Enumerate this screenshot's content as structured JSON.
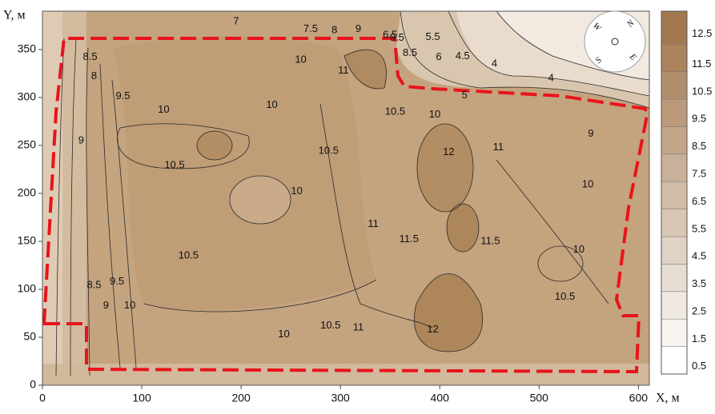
{
  "chart_data": {
    "type": "contour",
    "xlabel": "X, м",
    "ylabel": "Y, м",
    "xlim": [
      0,
      611
    ],
    "ylim": [
      0,
      390
    ],
    "xticks": [
      0,
      100,
      200,
      300,
      400,
      500,
      600
    ],
    "yticks": [
      0,
      50,
      100,
      150,
      200,
      250,
      300,
      350
    ],
    "clim": [
      0.5,
      13.7
    ],
    "cticks": [
      0.5,
      1.5,
      2.5,
      3.5,
      4.5,
      5.5,
      6.5,
      7.5,
      8.5,
      9.5,
      10.5,
      11.5,
      12.5
    ],
    "compass": [
      "N",
      "E",
      "S",
      "W"
    ],
    "contour_labels": [
      {
        "text": "7",
        "x": 195,
        "y": 379
      },
      {
        "text": "7.5",
        "x": 270,
        "y": 371
      },
      {
        "text": "8",
        "x": 294,
        "y": 370
      },
      {
        "text": "9",
        "x": 318,
        "y": 371
      },
      {
        "text": "6.5",
        "x": 350,
        "y": 365
      },
      {
        "text": "9.5",
        "x": 357,
        "y": 362
      },
      {
        "text": "8.5",
        "x": 370,
        "y": 346
      },
      {
        "text": "5.5",
        "x": 393,
        "y": 363
      },
      {
        "text": "6",
        "x": 399,
        "y": 342
      },
      {
        "text": "4.5",
        "x": 423,
        "y": 343
      },
      {
        "text": "4",
        "x": 455,
        "y": 335
      },
      {
        "text": "4",
        "x": 512,
        "y": 320
      },
      {
        "text": "5",
        "x": 425,
        "y": 302
      },
      {
        "text": "8.5",
        "x": 48,
        "y": 342
      },
      {
        "text": "8",
        "x": 52,
        "y": 322
      },
      {
        "text": "9.5",
        "x": 81,
        "y": 301
      },
      {
        "text": "10",
        "x": 122,
        "y": 287
      },
      {
        "text": "10",
        "x": 260,
        "y": 339
      },
      {
        "text": "11",
        "x": 303,
        "y": 328
      },
      {
        "text": "10",
        "x": 231,
        "y": 292
      },
      {
        "text": "10.5",
        "x": 355,
        "y": 285
      },
      {
        "text": "10",
        "x": 395,
        "y": 282
      },
      {
        "text": "9",
        "x": 39,
        "y": 255
      },
      {
        "text": "10.5",
        "x": 133,
        "y": 229
      },
      {
        "text": "10.5",
        "x": 288,
        "y": 244
      },
      {
        "text": "10",
        "x": 256,
        "y": 202
      },
      {
        "text": "12",
        "x": 409,
        "y": 243
      },
      {
        "text": "11",
        "x": 459,
        "y": 248
      },
      {
        "text": "9",
        "x": 552,
        "y": 262
      },
      {
        "text": "10",
        "x": 549,
        "y": 209
      },
      {
        "text": "11",
        "x": 333,
        "y": 168
      },
      {
        "text": "11.5",
        "x": 369,
        "y": 152
      },
      {
        "text": "11.5",
        "x": 451,
        "y": 150
      },
      {
        "text": "10.5",
        "x": 147,
        "y": 135
      },
      {
        "text": "10",
        "x": 540,
        "y": 141
      },
      {
        "text": "10.5",
        "x": 526,
        "y": 92
      },
      {
        "text": "8.5",
        "x": 52,
        "y": 104
      },
      {
        "text": "9",
        "x": 64,
        "y": 83
      },
      {
        "text": "9.5",
        "x": 75,
        "y": 108
      },
      {
        "text": "10",
        "x": 88,
        "y": 83
      },
      {
        "text": "10",
        "x": 243,
        "y": 53
      },
      {
        "text": "10.5",
        "x": 290,
        "y": 62
      },
      {
        "text": "11",
        "x": 318,
        "y": 60
      },
      {
        "text": "12",
        "x": 393,
        "y": 58
      }
    ]
  }
}
